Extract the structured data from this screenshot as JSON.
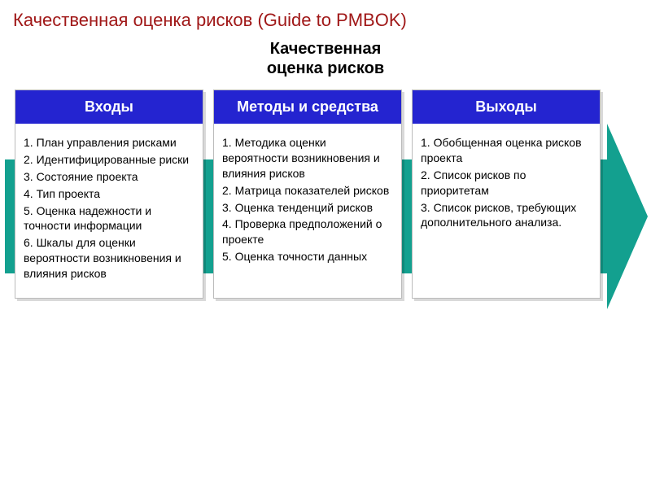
{
  "title": "Качественная оценка рисков (Guide to PMBOK)",
  "subtitle_line1": "Качественная",
  "subtitle_line2": "оценка рисков",
  "colors": {
    "title_color": "#a01818",
    "header_bg": "#2424d0",
    "header_text": "#ffffff",
    "arrow_color": "#13a08f",
    "card_bg": "#ffffff",
    "card_border": "#bbbbbb",
    "body_text": "#000000"
  },
  "columns": [
    {
      "header": "Входы",
      "items": [
        "1. План управления рисками",
        "2. Идентифицированные риски",
        "3. Состояние проекта",
        "4. Тип проекта",
        "5. Оценка надежности и точности информации",
        "6. Шкалы для оценки вероятности возникновения и влияния рисков"
      ]
    },
    {
      "header": "Методы и средства",
      "items": [
        "1. Методика оценки вероятности возникновения и влияния рисков",
        "2. Матрица показателей рисков",
        "3. Оценка тенденций рисков",
        "4. Проверка предположений о проекте",
        "5. Оценка точности данных"
      ]
    },
    {
      "header": "Выходы",
      "items": [
        "1. Обобщенная оценка рисков проекта",
        "2. Список рисков по приоритетам",
        "3. Список рисков, требующих дополнительного анализа."
      ]
    }
  ]
}
